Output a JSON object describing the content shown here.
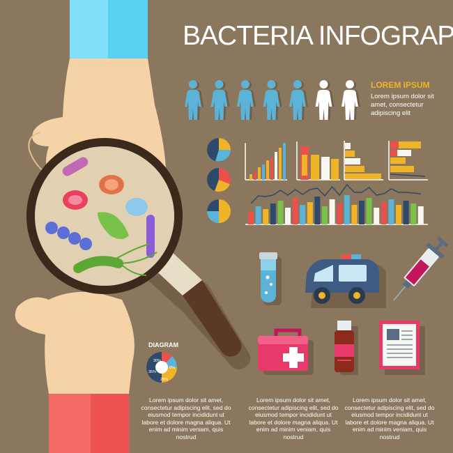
{
  "title": "BACTERIA INFOGRAPHICS",
  "lorem_heading": "LOREM IPSUM",
  "lorem_text": "Lorem ipsum dolor sit amet, consectetur adipiscing elit",
  "diagram_label": "DIAGRAM",
  "people": {
    "total": 7,
    "highlighted": 5
  },
  "donut_labels": [
    "30%",
    "8%",
    "25%",
    "35%"
  ],
  "colors": {
    "background": "#8a775d",
    "accent_yellow": "#f0b429",
    "blue": "#5bb4d8",
    "navy": "#2e4a6b",
    "red": "#e9514a"
  },
  "paragraphs": [
    "Lorem ipsum dolor sit amet, consectetur adipiscing elit, sed do eiusmod tempor incididunt ut labore et dolore magna aliqua. Ut enim ad minim veniam, quis nostrud",
    "Lorem ipsum dolor sit amet, consectetur adipiscing elit, sed do eiusmod tempor incididunt ut labore et dolore magna aliqua. Ut enim ad minim veniam, quis nostrud",
    "Lorem ipsum dolor sit amet, consectetur adipiscing elit, sed do eiusmod tempor incididunt ut labore et dolore magna aliqua. Ut enim ad minim veniam, quis nostrud"
  ],
  "icons": [
    "hand-top-icon",
    "hand-bottom-icon",
    "magnifier-icon",
    "test-tube-icon",
    "ambulance-icon",
    "syringe-icon",
    "first-aid-kit-icon",
    "medicine-bottle-icon",
    "document-icon"
  ]
}
